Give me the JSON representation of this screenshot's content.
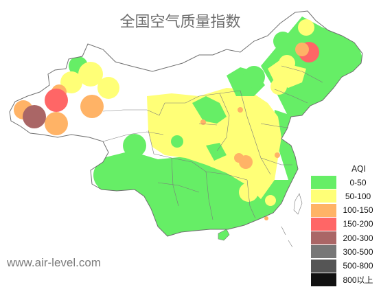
{
  "title": "全国空气质量指数",
  "watermark": "www.air-level.com",
  "legend": {
    "title": "AQI",
    "items": [
      {
        "label": "0-50",
        "color": "#66ee66"
      },
      {
        "label": "50-100",
        "color": "#ffff77"
      },
      {
        "label": "100-150",
        "color": "#ffb366"
      },
      {
        "label": "150-200",
        "color": "#ff6666"
      },
      {
        "label": "200-300",
        "color": "#aa6666"
      },
      {
        "label": "300-500",
        "color": "#777777"
      },
      {
        "label": "500-800",
        "color": "#555555"
      },
      {
        "label": "800以上",
        "color": "#111111"
      }
    ]
  }
}
